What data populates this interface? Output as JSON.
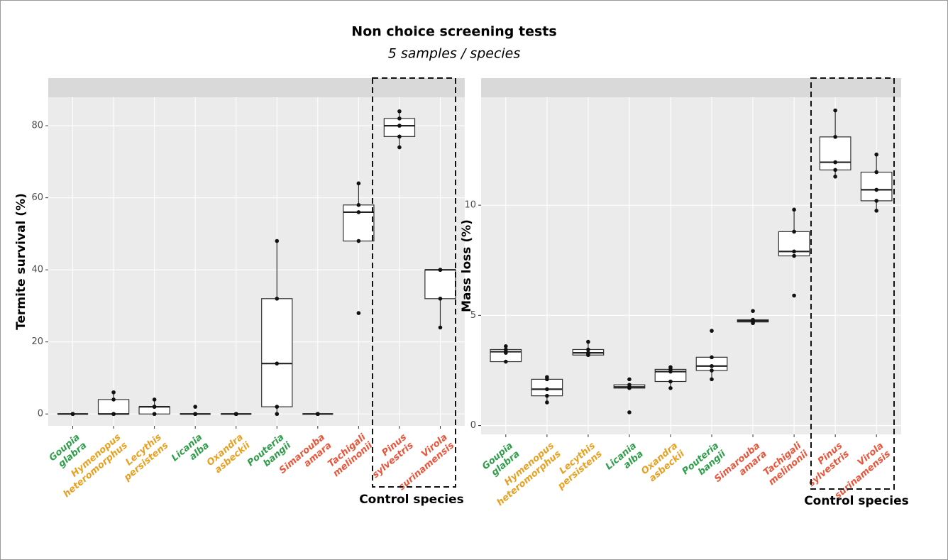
{
  "title": "Non choice screening tests",
  "subtitle": "5 samples / species",
  "chart_data": [
    {
      "type": "box",
      "ylabel": "Termite survival (%)",
      "annotation": "Control species",
      "categories": [
        [
          "Goupia",
          "glabra"
        ],
        [
          "Hymenopus",
          "heteromorphus"
        ],
        [
          "Lecythis",
          "persistens"
        ],
        [
          "Licania",
          "alba"
        ],
        [
          "Oxandra",
          "asbeckii"
        ],
        [
          "Pouteria",
          "bangii"
        ],
        [
          "Simarouba",
          "amara"
        ],
        [
          "Tachigali",
          "melinonii"
        ],
        [
          "Pinus",
          "sylvestris"
        ],
        [
          "Virola",
          "surinamensis"
        ]
      ],
      "category_colors": [
        "#2f9e4a",
        "#e8a021",
        "#e8a021",
        "#2f9e4a",
        "#e8a021",
        "#2f9e4a",
        "#e9553a",
        "#e9553a",
        "#e9553a",
        "#e9553a"
      ],
      "whisker_low": [
        0,
        0,
        0,
        0,
        0,
        0,
        0,
        48,
        74,
        24
      ],
      "q1": [
        0,
        0,
        0,
        0,
        0,
        2,
        0,
        48,
        77,
        32
      ],
      "median": [
        0,
        0,
        2,
        0,
        0,
        14,
        0,
        56,
        80,
        40
      ],
      "q3": [
        0,
        4,
        2,
        0,
        0,
        32,
        0,
        58,
        82,
        40
      ],
      "whisker_high": [
        0,
        6,
        4,
        0,
        0,
        48,
        0,
        64,
        84,
        40
      ],
      "points": [
        [
          0,
          0,
          0,
          0,
          0
        ],
        [
          0,
          0,
          0,
          4,
          6
        ],
        [
          0,
          0,
          2,
          2,
          4
        ],
        [
          0,
          0,
          0,
          0,
          2
        ],
        [
          0,
          0,
          0,
          0,
          0
        ],
        [
          0,
          2,
          14,
          32,
          48
        ],
        [
          0,
          0,
          0,
          0,
          0
        ],
        [
          28,
          48,
          56,
          58,
          64
        ],
        [
          74,
          77,
          80,
          82,
          84
        ],
        [
          24,
          32,
          40,
          40,
          40
        ]
      ],
      "ylim": [
        -3.3,
        87.9
      ],
      "yticks": [
        0,
        20,
        40,
        60,
        80
      ],
      "grid": true
    },
    {
      "type": "box",
      "ylabel": "Mass loss (%)",
      "annotation": "Control species",
      "categories": [
        [
          "Goupia",
          "glabra"
        ],
        [
          "Hymenopus",
          "heteromorphus"
        ],
        [
          "Lecythis",
          "persistens"
        ],
        [
          "Licania",
          "alba"
        ],
        [
          "Oxandra",
          "asbeckii"
        ],
        [
          "Pouteria",
          "bangii"
        ],
        [
          "Simarouba",
          "amara"
        ],
        [
          "Tachigali",
          "melinonii"
        ],
        [
          "Pinus",
          "sylvestris"
        ],
        [
          "Virola",
          "surinamensis"
        ]
      ],
      "category_colors": [
        "#2f9e4a",
        "#e8a021",
        "#e8a021",
        "#2f9e4a",
        "#e8a021",
        "#2f9e4a",
        "#e9553a",
        "#e9553a",
        "#e9553a",
        "#e9553a"
      ],
      "whisker_low": [
        2.9,
        1.05,
        3.2,
        1.7,
        1.7,
        2.1,
        4.65,
        7.7,
        11.3,
        9.75
      ],
      "q1": [
        2.9,
        1.35,
        3.2,
        1.7,
        2.0,
        2.5,
        4.7,
        7.7,
        11.6,
        10.2
      ],
      "median": [
        3.35,
        1.65,
        3.3,
        1.75,
        2.45,
        2.7,
        4.75,
        7.9,
        11.95,
        10.7
      ],
      "q3": [
        3.45,
        2.1,
        3.45,
        1.85,
        2.55,
        3.1,
        4.8,
        8.8,
        13.1,
        11.5
      ],
      "whisker_high": [
        3.6,
        2.2,
        3.8,
        1.85,
        2.65,
        3.1,
        4.8,
        9.8,
        14.3,
        12.3
      ],
      "points": [
        [
          2.9,
          3.3,
          3.35,
          3.45,
          3.6
        ],
        [
          1.05,
          1.35,
          1.65,
          2.1,
          2.2
        ],
        [
          3.2,
          3.25,
          3.3,
          3.45,
          3.8
        ],
        [
          0.6,
          1.7,
          1.75,
          1.85,
          2.1
        ],
        [
          1.7,
          2.0,
          2.45,
          2.55,
          2.65
        ],
        [
          2.1,
          2.5,
          2.7,
          3.1,
          4.3
        ],
        [
          4.65,
          4.7,
          4.75,
          4.8,
          5.2
        ],
        [
          5.9,
          7.7,
          7.9,
          8.8,
          9.8
        ],
        [
          11.3,
          11.6,
          11.95,
          13.1,
          14.3
        ],
        [
          9.75,
          10.2,
          10.7,
          11.5,
          12.3
        ]
      ],
      "ylim": [
        -0.4,
        14.9
      ],
      "yticks": [
        0,
        5,
        10
      ],
      "grid": true
    }
  ]
}
